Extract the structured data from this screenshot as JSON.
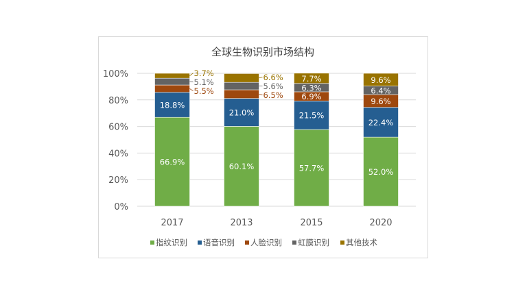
{
  "chart_data": {
    "type": "stacked-bar-100",
    "title": "全球生物识别市场结构",
    "categories": [
      "2017",
      "2013",
      "2015",
      "2020"
    ],
    "series": [
      {
        "name": "指纹识别",
        "color": "#70ad47",
        "values": [
          66.9,
          60.1,
          57.7,
          52.0
        ]
      },
      {
        "name": "语音识别",
        "color": "#255e91",
        "values": [
          18.8,
          21.0,
          21.5,
          22.4
        ]
      },
      {
        "name": "人脸识别",
        "color": "#9e480e",
        "values": [
          5.5,
          6.5,
          6.9,
          9.6
        ]
      },
      {
        "name": "虹膜识别",
        "color": "#636363",
        "values": [
          5.1,
          5.6,
          6.3,
          6.4
        ]
      },
      {
        "name": "其他技术",
        "color": "#997300",
        "values": [
          3.7,
          6.6,
          7.7,
          9.6
        ]
      }
    ],
    "yticks": [
      "0%",
      "20%",
      "40%",
      "60%",
      "80%",
      "100%"
    ],
    "ylim": [
      0,
      100
    ],
    "grid": true,
    "legend": "bottom",
    "data_label_format": "%"
  }
}
